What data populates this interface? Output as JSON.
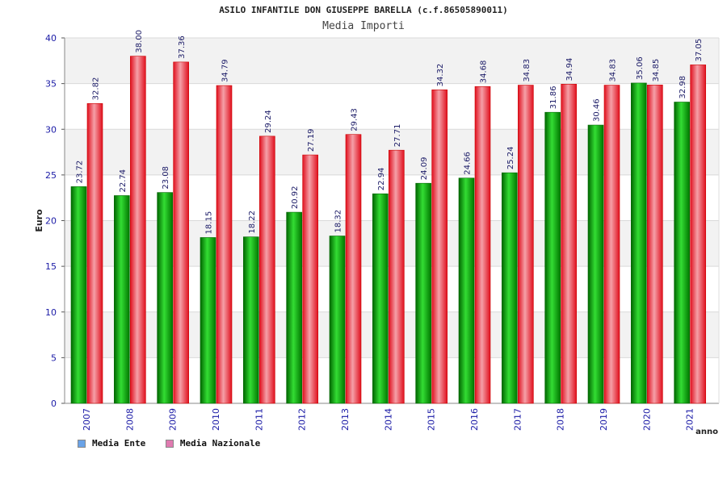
{
  "chart_data": {
    "type": "bar",
    "title": "ASILO INFANTILE DON GIUSEPPE BARELLA (c.f.86505890011)",
    "subtitle": "Media Importi",
    "xlabel": "anno",
    "ylabel": "Euro",
    "ylim": [
      0,
      40
    ],
    "yticks": [
      0,
      5,
      10,
      15,
      20,
      25,
      30,
      35,
      40
    ],
    "categories": [
      "2007",
      "2008",
      "2009",
      "2010",
      "2011",
      "2012",
      "2013",
      "2014",
      "2015",
      "2016",
      "2017",
      "2018",
      "2019",
      "2020",
      "2021"
    ],
    "series": [
      {
        "name": "Media Ente",
        "color": "#00aa00",
        "legend_color": "#6aa3e8",
        "values": [
          23.72,
          22.74,
          23.08,
          18.15,
          18.22,
          20.92,
          18.32,
          22.94,
          24.09,
          24.66,
          25.24,
          31.86,
          30.46,
          35.06,
          32.98
        ],
        "labels": [
          "23.72",
          "22.74",
          "23.08",
          "18.15",
          "18.22",
          "20.92",
          "18.32",
          "22.94",
          "24.09",
          "24.66",
          "25.24",
          "31.86",
          "30.46",
          "35.06",
          "32.98"
        ]
      },
      {
        "name": "Media Nazionale",
        "color": "#ee1c2a",
        "legend_color": "#e07ab0",
        "values": [
          32.82,
          38.0,
          37.36,
          34.79,
          29.24,
          27.19,
          29.43,
          27.71,
          34.32,
          34.68,
          34.83,
          34.94,
          34.83,
          34.85,
          37.05
        ],
        "labels": [
          "32.82",
          "38.00",
          "37.36",
          "34.79",
          "29.24",
          "27.19",
          "29.43",
          "27.71",
          "34.32",
          "34.68",
          "34.83",
          "34.94",
          "34.83",
          "34.85",
          "37.05"
        ]
      }
    ],
    "grid": true,
    "legend_position": "bottom-left"
  }
}
